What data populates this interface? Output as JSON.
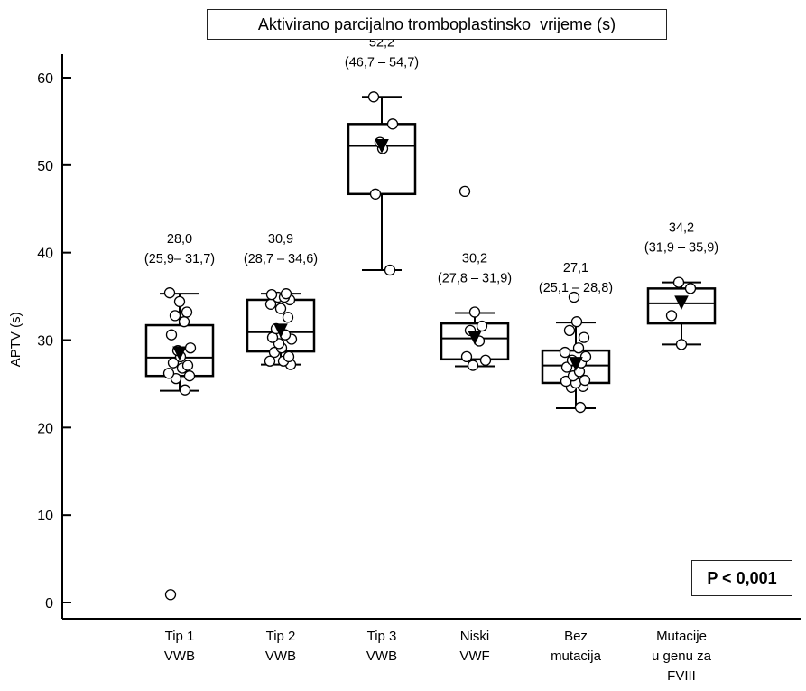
{
  "chart_data": {
    "type": "box",
    "title": "Aktivirano parcijalno tromboplastinsko  vrijeme (s)",
    "ylabel": "APTV (s)",
    "xlabel": "",
    "ylim": [
      -1,
      62
    ],
    "yticks": [
      0,
      10,
      20,
      30,
      40,
      50,
      60
    ],
    "p_value": "P < 0,001",
    "groups": [
      {
        "category": [
          "Tip 1",
          "VWB"
        ],
        "annotation": [
          "28,0",
          "(25,9– 31,7)"
        ],
        "whisker_low": 24.2,
        "q1": 25.9,
        "median": 28.0,
        "q3": 31.7,
        "whisker_high": 35.3,
        "mean": 28.5,
        "points": [
          0.9,
          24.3,
          25.6,
          25.9,
          26.2,
          26.8,
          27.1,
          27.4,
          28.1,
          28.8,
          29.1,
          30.6,
          32.1,
          32.8,
          33.2,
          34.4,
          35.4
        ]
      },
      {
        "category": [
          "Tip 2",
          "VWB"
        ],
        "annotation": [
          "30,9",
          "(28,7 – 34,6)"
        ],
        "whisker_low": 27.2,
        "q1": 28.7,
        "median": 30.9,
        "q3": 34.6,
        "whisker_high": 35.3,
        "mean": 31.1,
        "points": [
          27.2,
          27.6,
          27.6,
          28.1,
          28.6,
          29.1,
          29.6,
          30.1,
          30.3,
          30.6,
          31.3,
          32.6,
          33.6,
          34.1,
          34.6,
          34.9,
          34.9,
          35.2,
          35.3
        ]
      },
      {
        "category": [
          "Tip 3",
          "VWB"
        ],
        "annotation": [
          "52,2",
          "(46,7 – 54,7)"
        ],
        "whisker_low": 38.0,
        "q1": 46.7,
        "median": 52.2,
        "q3": 54.7,
        "whisker_high": 57.8,
        "mean": 52.2,
        "points": [
          38.0,
          46.7,
          51.9,
          52.6,
          54.7,
          57.8
        ]
      },
      {
        "category": [
          "Niski",
          "VWF"
        ],
        "annotation": [
          "30,2",
          "(27,8 – 31,9)"
        ],
        "whisker_low": 27.0,
        "q1": 27.8,
        "median": 30.2,
        "q3": 31.9,
        "whisker_high": 33.1,
        "mean": 30.3,
        "points": [
          27.1,
          27.7,
          28.1,
          29.9,
          31.1,
          31.6,
          33.2,
          47.0
        ]
      },
      {
        "category": [
          "Bez",
          "mutacija"
        ],
        "annotation": [
          "27,1",
          "(25,1 – 28,8)"
        ],
        "whisker_low": 22.2,
        "q1": 25.1,
        "median": 27.1,
        "q3": 28.8,
        "whisker_high": 32.0,
        "mean": 27.3,
        "points": [
          22.3,
          24.6,
          24.7,
          25.1,
          25.3,
          25.4,
          25.9,
          26.4,
          26.9,
          27.4,
          27.7,
          28.1,
          28.6,
          29.1,
          30.3,
          31.1,
          32.1,
          34.9
        ]
      },
      {
        "category": [
          "Mutacije",
          "u genu za",
          "FVIII"
        ],
        "annotation": [
          "34,2",
          "(31,9 – 35,9)"
        ],
        "whisker_low": 29.5,
        "q1": 31.9,
        "median": 34.2,
        "q3": 35.9,
        "whisker_high": 36.6,
        "mean": 34.3,
        "points": [
          29.5,
          32.8,
          35.9,
          36.6
        ]
      }
    ]
  }
}
